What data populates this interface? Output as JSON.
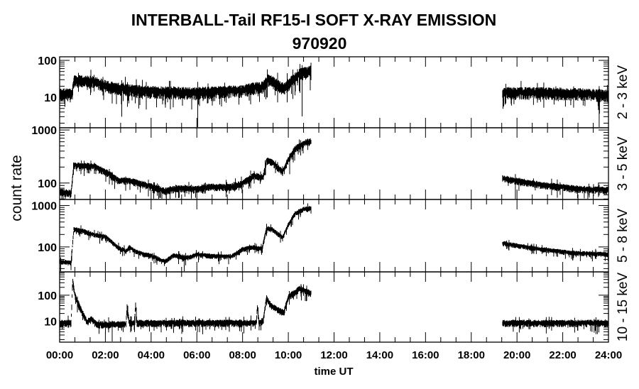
{
  "chart_data": {
    "type": "line",
    "title": "INTERBALL-Tail RF15-I SOFT X-RAY EMISSION",
    "subtitle": "970920",
    "xlabel": "time UT",
    "ylabel": "count rate",
    "x_units": "hours UT",
    "xlim": [
      0,
      24
    ],
    "x_ticks": [
      "00:00",
      "02:00",
      "04:00",
      "06:00",
      "08:00",
      "10:00",
      "12:00",
      "14:00",
      "16:00",
      "18:00",
      "20:00",
      "22:00",
      "24:00"
    ],
    "grid": false,
    "y_scale": "log",
    "panels": [
      {
        "name": "2 - 3 keV",
        "ylim": [
          1.5,
          125
        ],
        "y_ticks": [
          "10",
          "100"
        ],
        "segments": [
          [
            [
              0,
              13
            ],
            [
              0.55,
              13
            ],
            [
              0.62,
              30
            ],
            [
              1.5,
              28
            ],
            [
              2.2,
              20
            ],
            [
              3,
              17
            ],
            [
              4,
              15
            ],
            [
              6,
              14
            ],
            [
              8,
              16
            ],
            [
              8.5,
              19
            ],
            [
              8.9,
              20
            ],
            [
              9.1,
              32
            ],
            [
              9.5,
              24
            ],
            [
              9.8,
              18
            ],
            [
              10.1,
              27
            ],
            [
              10.5,
              45
            ],
            [
              11,
              55
            ]
          ],
          [
            [
              19.37,
              14
            ],
            [
              21,
              14
            ],
            [
              23,
              13
            ],
            [
              24,
              12
            ]
          ]
        ]
      },
      {
        "name": "3 - 5 keV",
        "ylim": [
          49,
          1100
        ],
        "y_ticks": [
          "100",
          "1000"
        ],
        "segments": [
          [
            [
              0,
              70
            ],
            [
              0.5,
              65
            ],
            [
              0.62,
              220
            ],
            [
              1.5,
              210
            ],
            [
              2.2,
              150
            ],
            [
              2.6,
              110
            ],
            [
              3,
              115
            ],
            [
              3.5,
              100
            ],
            [
              4,
              88
            ],
            [
              4.6,
              72
            ],
            [
              5.2,
              82
            ],
            [
              6,
              78
            ],
            [
              6.5,
              86
            ],
            [
              7.5,
              86
            ],
            [
              8,
              100
            ],
            [
              8.5,
              140
            ],
            [
              8.9,
              130
            ],
            [
              9.05,
              270
            ],
            [
              9.3,
              250
            ],
            [
              9.75,
              165
            ],
            [
              10,
              280
            ],
            [
              10.3,
              450
            ],
            [
              10.7,
              580
            ],
            [
              11,
              620
            ]
          ],
          [
            [
              19.37,
              125
            ],
            [
              21,
              95
            ],
            [
              22.5,
              80
            ],
            [
              24,
              75
            ]
          ]
        ]
      },
      {
        "name": "5 - 8 keV",
        "ylim": [
          25,
          1400
        ],
        "y_ticks": [
          "100",
          "1000"
        ],
        "segments": [
          [
            [
              0,
              45
            ],
            [
              0.5,
              42
            ],
            [
              0.62,
              270
            ],
            [
              1,
              250
            ],
            [
              1.5,
              200
            ],
            [
              2,
              180
            ],
            [
              2.6,
              95
            ],
            [
              2.9,
              80
            ],
            [
              3.05,
              100
            ],
            [
              3.4,
              75
            ],
            [
              4,
              62
            ],
            [
              4.6,
              45
            ],
            [
              5,
              65
            ],
            [
              5.5,
              55
            ],
            [
              6,
              66
            ],
            [
              7,
              60
            ],
            [
              7.5,
              60
            ],
            [
              8,
              90
            ],
            [
              8.5,
              100
            ],
            [
              8.85,
              90
            ],
            [
              9.05,
              290
            ],
            [
              9.3,
              270
            ],
            [
              9.75,
              170
            ],
            [
              10,
              350
            ],
            [
              10.3,
              650
            ],
            [
              10.7,
              850
            ],
            [
              11,
              880
            ]
          ],
          [
            [
              19.37,
              125
            ],
            [
              21,
              90
            ],
            [
              22.5,
              72
            ],
            [
              24,
              68
            ]
          ]
        ]
      },
      {
        "name": "10 - 15 keV",
        "ylim": [
          1.6,
          780
        ],
        "y_ticks": [
          "10",
          "100"
        ],
        "segments": [
          [
            [
              0,
              9
            ],
            [
              0.5,
              9
            ],
            [
              0.57,
              400
            ],
            [
              0.65,
              120
            ],
            [
              0.85,
              40
            ],
            [
              1.2,
              10
            ],
            [
              1.4,
              13
            ],
            [
              1.6,
              8
            ],
            [
              2,
              8
            ],
            [
              2.9,
              8
            ],
            [
              2.95,
              40
            ],
            [
              3.05,
              9
            ],
            [
              3.28,
              9
            ],
            [
              3.32,
              50
            ],
            [
              3.38,
              9
            ],
            [
              8.6,
              9
            ],
            [
              8.65,
              40
            ],
            [
              8.72,
              9
            ],
            [
              8.9,
              11
            ],
            [
              9.05,
              80
            ],
            [
              9.25,
              40
            ],
            [
              9.8,
              22
            ],
            [
              10,
              90
            ],
            [
              10.5,
              180
            ],
            [
              11,
              120
            ]
          ],
          [
            [
              19.37,
              9
            ],
            [
              24,
              9
            ]
          ]
        ]
      }
    ]
  }
}
